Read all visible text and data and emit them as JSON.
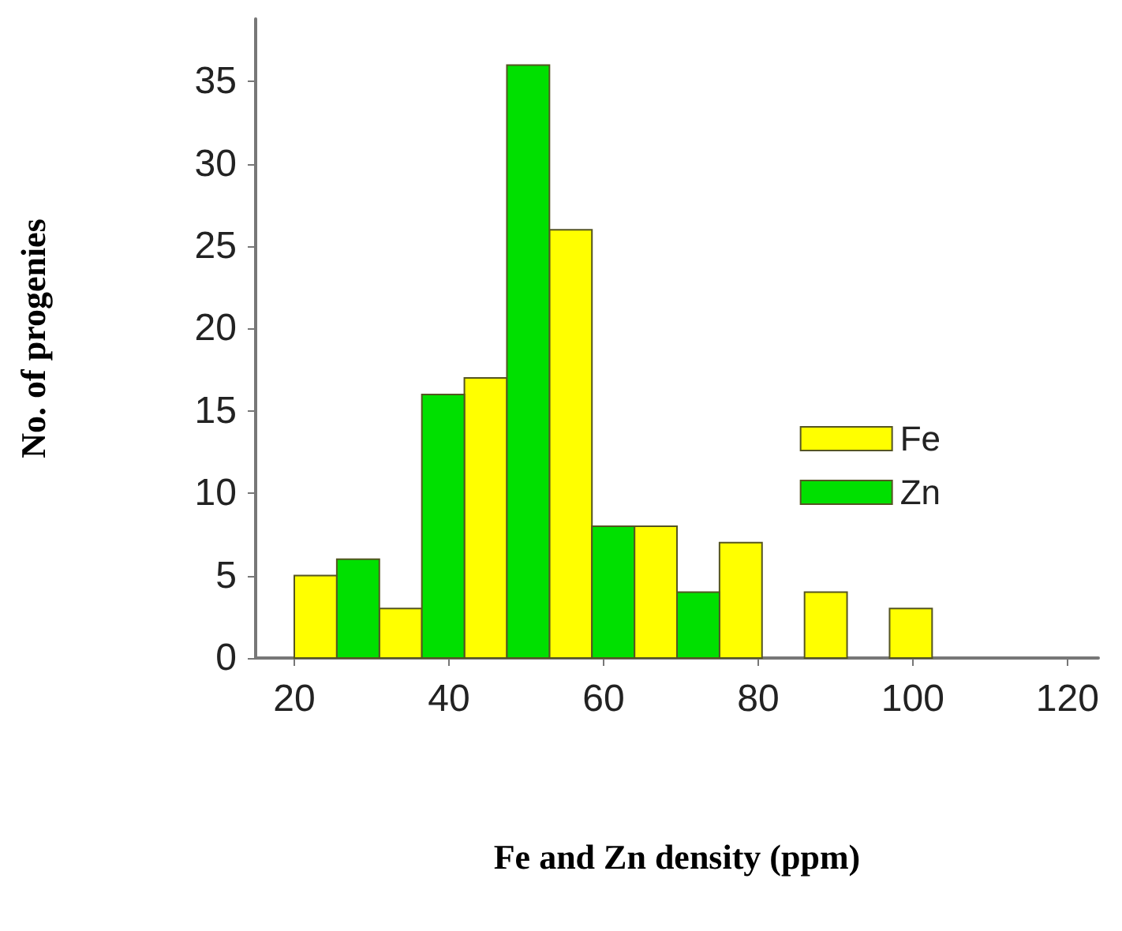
{
  "chart_data": {
    "type": "histogram",
    "xlabel": "Fe and Zn density (ppm)",
    "ylabel": "No. of progenies",
    "bins": [
      20,
      25.5,
      31,
      36.5,
      42,
      47.5,
      53,
      58.5,
      64,
      69.5,
      75,
      80.5,
      86,
      91.5,
      97,
      102.5
    ],
    "series": [
      {
        "name": "Fe",
        "color": "#ffff00",
        "values": [
          5,
          null,
          3,
          null,
          17,
          null,
          26,
          null,
          8,
          null,
          7,
          null,
          4,
          null,
          3
        ]
      },
      {
        "name": "Zn",
        "color": "#00e000",
        "values": [
          null,
          6,
          null,
          16,
          null,
          36,
          null,
          8,
          null,
          4,
          null,
          null,
          null,
          null,
          null
        ]
      }
    ],
    "xlim": [
      15,
      124
    ],
    "xticks": [
      20,
      40,
      60,
      80,
      100,
      120
    ],
    "ylim": [
      0,
      38.8
    ],
    "yticks": [
      0,
      5,
      10,
      15,
      20,
      25,
      30,
      35
    ],
    "grid": false,
    "legend": "right"
  }
}
